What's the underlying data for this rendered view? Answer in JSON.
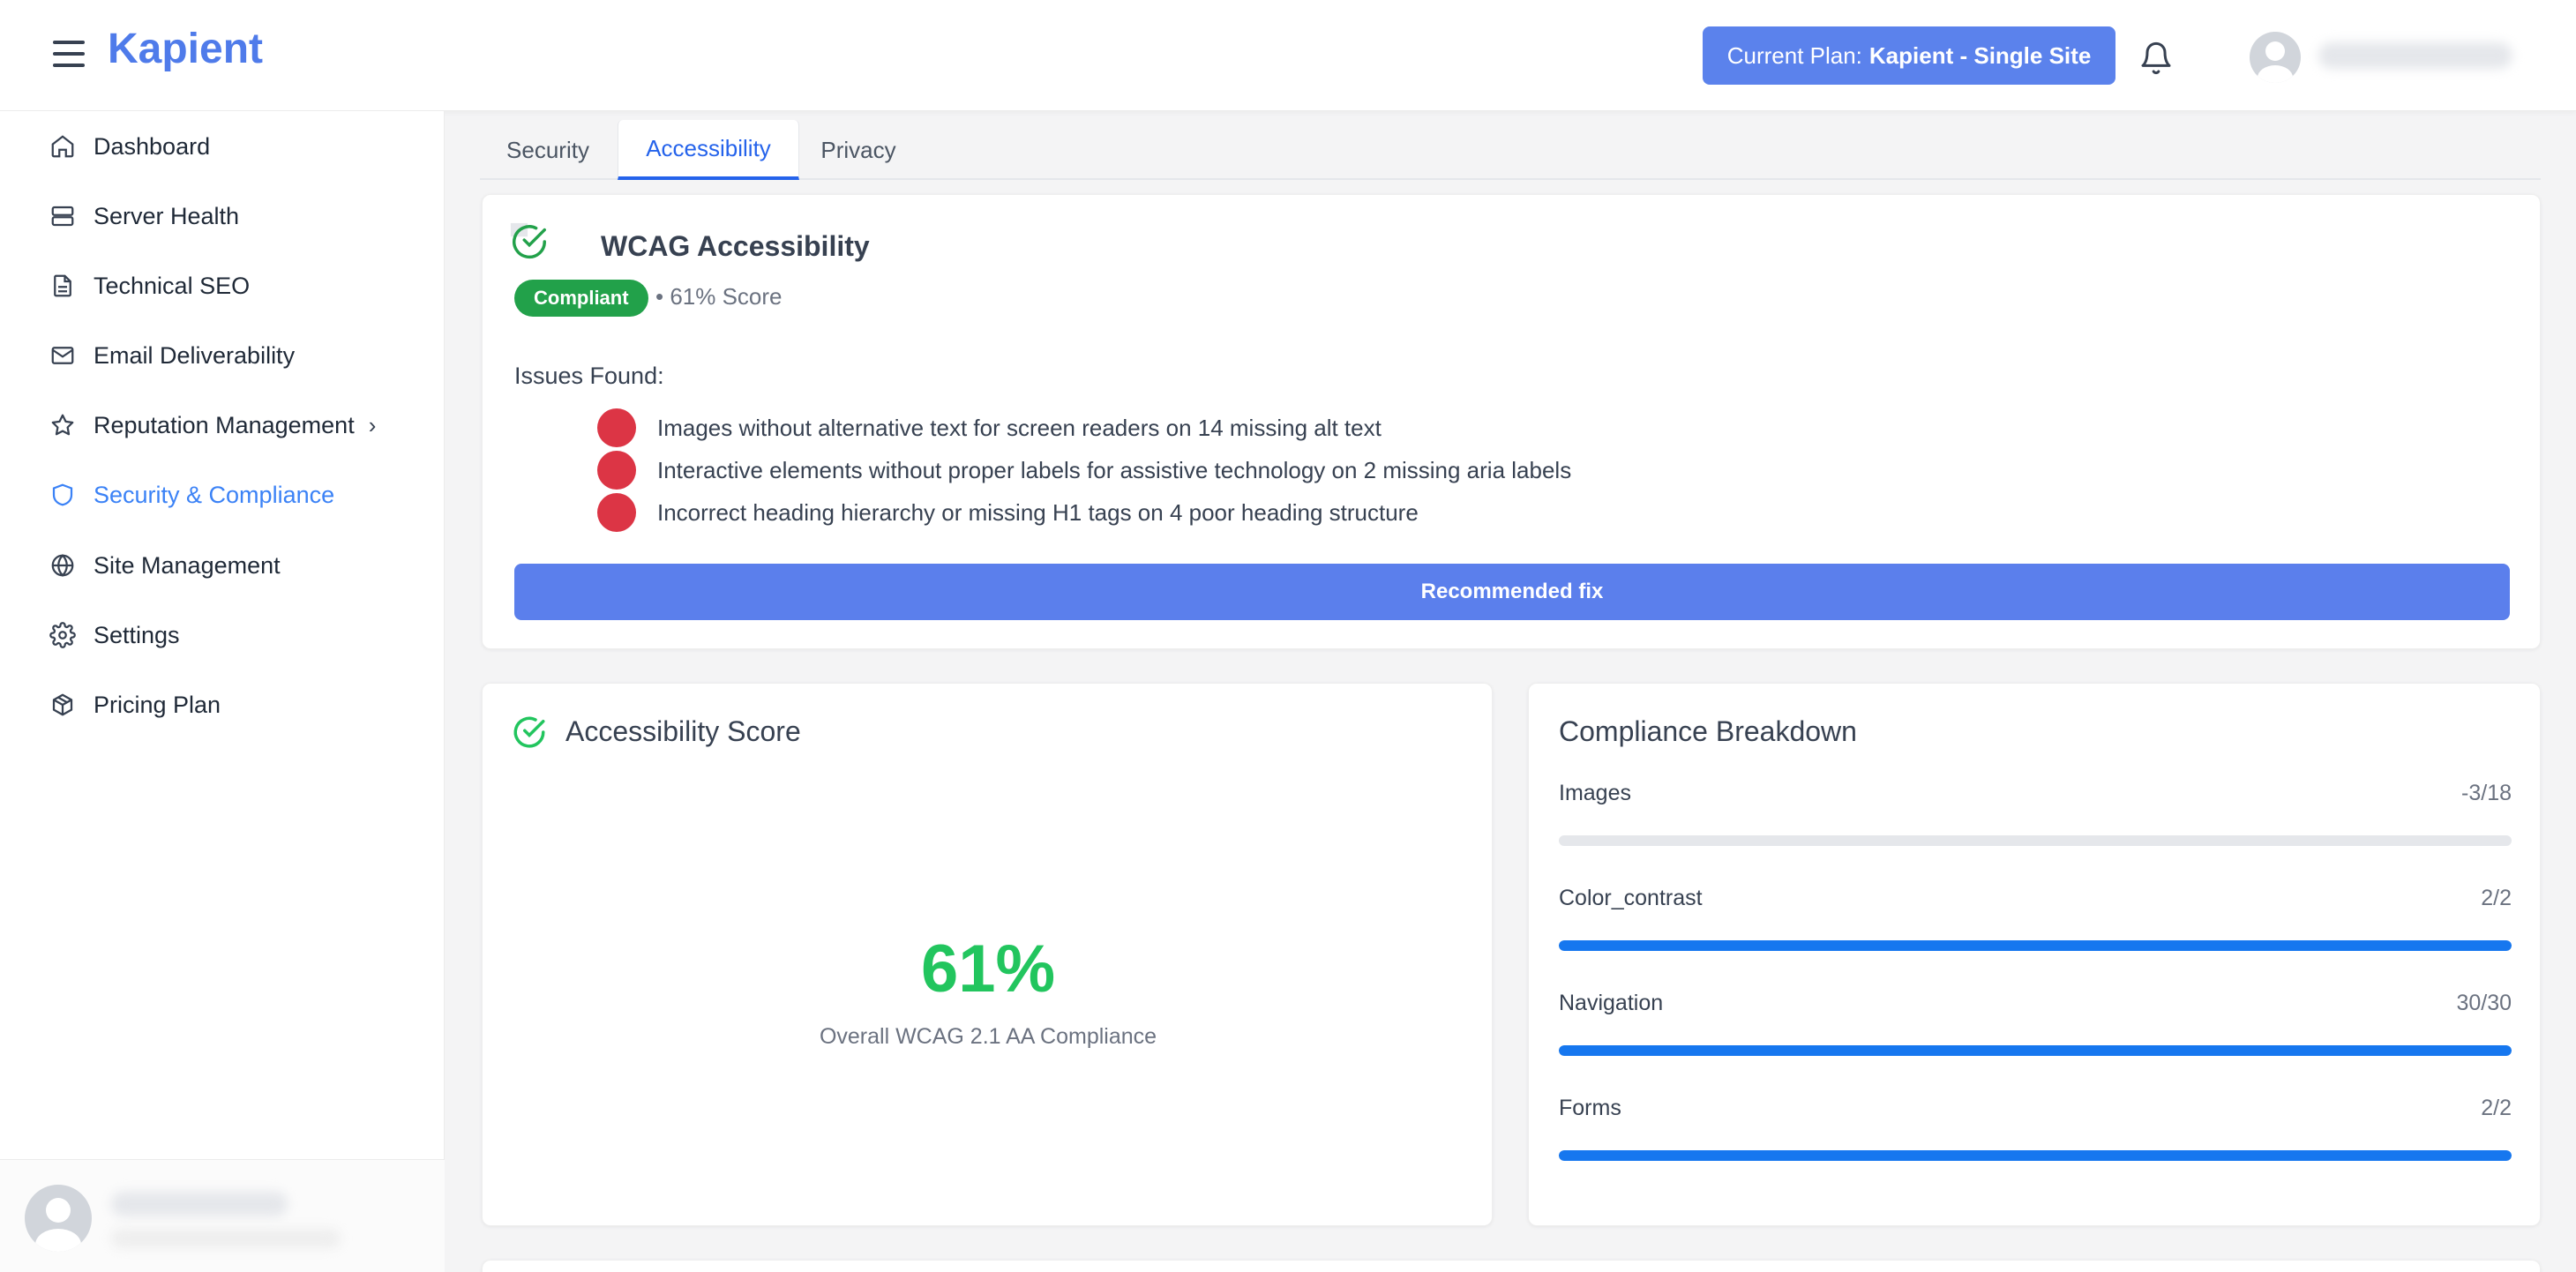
{
  "header": {
    "logo": "Kapient",
    "plan_prefix": "Current Plan:",
    "plan_name": "Kapient - Single Site"
  },
  "sidebar": {
    "items": [
      {
        "label": "Dashboard",
        "icon": "home-icon"
      },
      {
        "label": "Server Health",
        "icon": "server-icon"
      },
      {
        "label": "Technical SEO",
        "icon": "document-icon"
      },
      {
        "label": "Email Deliverability",
        "icon": "mail-icon"
      },
      {
        "label": "Reputation Management",
        "icon": "star-icon"
      },
      {
        "label": "Security & Compliance",
        "icon": "shield-icon",
        "active": true
      },
      {
        "label": "Site Management",
        "icon": "globe-icon"
      },
      {
        "label": "Settings",
        "icon": "gear-icon"
      },
      {
        "label": "Pricing Plan",
        "icon": "package-icon"
      }
    ]
  },
  "tabs": [
    {
      "label": "Security"
    },
    {
      "label": "Accessibility",
      "active": true
    },
    {
      "label": "Privacy"
    }
  ],
  "wcag": {
    "title": "WCAG Accessibility",
    "badge": "Compliant",
    "score_text": "• 61% Score",
    "issues_label": "Issues Found:",
    "issues": [
      "Images without alternative text for screen readers on 14 missing alt text",
      "Interactive elements without proper labels for assistive technology on 2 missing aria labels",
      "Incorrect heading hierarchy or missing H1 tags on 4 poor heading structure"
    ],
    "fix_button": "Recommended fix"
  },
  "score_card": {
    "title": "Accessibility Score",
    "value": "61%",
    "subtitle": "Overall WCAG 2.1 AA Compliance"
  },
  "breakdown": {
    "title": "Compliance Breakdown",
    "rows": [
      {
        "label": "Images",
        "value": "-3/18",
        "progress": 0
      },
      {
        "label": "Color_contrast",
        "value": "2/2",
        "progress": 1
      },
      {
        "label": "Navigation",
        "value": "30/30",
        "progress": 1
      },
      {
        "label": "Forms",
        "value": "2/2",
        "progress": 1
      }
    ]
  },
  "colors": {
    "brand": "#4f7bea",
    "success": "#22c55e",
    "danger": "#dc3545",
    "progress": "#1677ef"
  }
}
